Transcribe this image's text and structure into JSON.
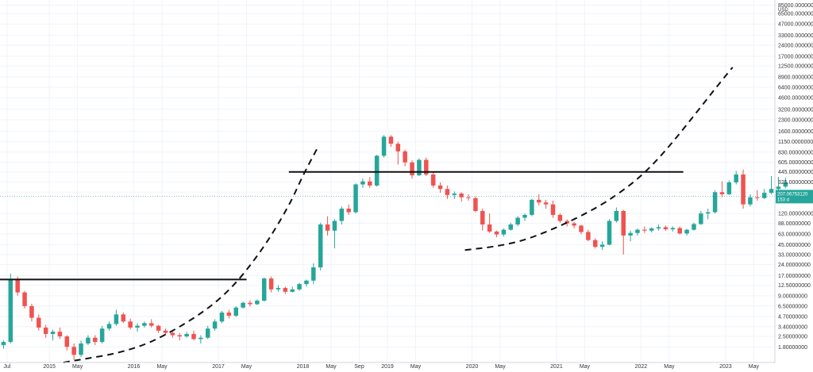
{
  "chart_data": {
    "type": "candlestick",
    "title": "",
    "y_scale": "log",
    "y_unit": "USD",
    "ylim": [
      1.1,
      100000
    ],
    "xlim": [
      "2014-06",
      "2023-08"
    ],
    "grid": true,
    "colors": {
      "up": "#26a69a",
      "down": "#ef5350",
      "last_price_bg": "#26a69a",
      "drawing": "#111111"
    },
    "y_ticks": [
      "85000.00000000",
      "65000.00000000",
      "47000.00000000",
      "33000.00000000",
      "24000.00000000",
      "17000.00000000",
      "12500.00000000",
      "8900.00000000",
      "6400.00000000",
      "4600.00000000",
      "3200.00000000",
      "2300.00000000",
      "1600.00000000",
      "1150.00000000",
      "830.00000000",
      "605.00000000",
      "445.00000000",
      "325.00000000",
      "235.00000000",
      "120.00000000",
      "88.00000000",
      "63.00000000",
      "45.00000000",
      "33.00000000",
      "24.00000000",
      "17.00000000",
      "12.50000000",
      "9.00000000",
      "6.50000000",
      "4.70000000",
      "3.40000000",
      "2.50000000",
      "1.80000000"
    ],
    "x_ticks": [
      "Jul",
      "2015",
      "May",
      "2016",
      "May",
      "2017",
      "May",
      "2018",
      "May",
      "Sep",
      "2019",
      "May",
      "2020",
      "May",
      "2021",
      "May",
      "2022",
      "May",
      "2023",
      "May"
    ],
    "last_price": {
      "value": "207.06753120",
      "countdown": "153 d"
    },
    "candles": [
      [
        1.9,
        2.2,
        1.7,
        2.1
      ],
      [
        2.1,
        18.0,
        2.0,
        15.0
      ],
      [
        15.0,
        16.5,
        9.0,
        10.0
      ],
      [
        10.0,
        10.5,
        6.0,
        6.5
      ],
      [
        6.5,
        7.0,
        4.0,
        4.5
      ],
      [
        4.5,
        5.0,
        3.0,
        3.3
      ],
      [
        3.3,
        3.6,
        2.4,
        2.7
      ],
      [
        2.7,
        3.1,
        2.2,
        2.9
      ],
      [
        2.9,
        3.3,
        2.3,
        2.5
      ],
      [
        2.5,
        2.6,
        1.6,
        1.8
      ],
      [
        1.8,
        2.0,
        1.2,
        1.4
      ],
      [
        1.4,
        2.2,
        1.3,
        2.0
      ],
      [
        2.0,
        2.6,
        1.9,
        2.4
      ],
      [
        2.4,
        2.6,
        1.9,
        2.1
      ],
      [
        2.1,
        3.5,
        2.0,
        3.2
      ],
      [
        3.2,
        4.0,
        3.0,
        3.7
      ],
      [
        3.7,
        5.8,
        3.5,
        5.0
      ],
      [
        5.0,
        5.3,
        3.8,
        4.0
      ],
      [
        4.0,
        4.4,
        3.1,
        3.3
      ],
      [
        3.3,
        3.8,
        2.9,
        3.5
      ],
      [
        3.5,
        4.0,
        3.3,
        3.8
      ],
      [
        3.8,
        4.3,
        3.3,
        3.5
      ],
      [
        3.5,
        3.6,
        2.8,
        3.0
      ],
      [
        3.0,
        3.2,
        2.6,
        2.8
      ],
      [
        2.8,
        3.1,
        2.4,
        2.6
      ],
      [
        2.6,
        2.8,
        2.2,
        2.5
      ],
      [
        2.5,
        2.9,
        2.4,
        2.7
      ],
      [
        2.7,
        3.0,
        2.2,
        2.3
      ],
      [
        2.3,
        2.6,
        2.0,
        2.4
      ],
      [
        2.4,
        3.5,
        2.3,
        3.2
      ],
      [
        3.2,
        4.3,
        3.0,
        4.0
      ],
      [
        4.0,
        5.6,
        3.8,
        5.3
      ],
      [
        5.3,
        5.8,
        4.4,
        4.8
      ],
      [
        4.8,
        6.5,
        4.6,
        6.2
      ],
      [
        6.2,
        7.5,
        6.0,
        7.2
      ],
      [
        7.2,
        7.8,
        6.4,
        6.9
      ],
      [
        6.9,
        8.0,
        6.7,
        7.7
      ],
      [
        7.7,
        16.0,
        7.5,
        15.5
      ],
      [
        15.5,
        16.5,
        10.0,
        11.0
      ],
      [
        11.0,
        12.5,
        10.2,
        11.5
      ],
      [
        11.5,
        12.0,
        9.5,
        10.2
      ],
      [
        10.2,
        12.0,
        10.0,
        11.0
      ],
      [
        11.0,
        13.5,
        10.5,
        13.0
      ],
      [
        13.0,
        15.0,
        12.0,
        14.5
      ],
      [
        14.5,
        25.0,
        13.0,
        22.0
      ],
      [
        22.0,
        90.0,
        20.0,
        85.0
      ],
      [
        85.0,
        110.0,
        60.0,
        70.0
      ],
      [
        70.0,
        100.0,
        40.0,
        95.0
      ],
      [
        95.0,
        150.0,
        85.0,
        140.0
      ],
      [
        140.0,
        160.0,
        115.0,
        125.0
      ],
      [
        125.0,
        310.0,
        120.0,
        300.0
      ],
      [
        300.0,
        360.0,
        270.0,
        330.0
      ],
      [
        330.0,
        380.0,
        270.0,
        290.0
      ],
      [
        290.0,
        760.0,
        280.0,
        740.0
      ],
      [
        740.0,
        1420.0,
        700.0,
        1350.0
      ],
      [
        1350.0,
        1420.0,
        980.0,
        1080.0
      ],
      [
        1080.0,
        1150.0,
        560.0,
        850.0
      ],
      [
        850.0,
        900.0,
        530.0,
        600.0
      ],
      [
        600.0,
        640.0,
        360.0,
        400.0
      ],
      [
        400.0,
        680.0,
        390.0,
        650.0
      ],
      [
        650.0,
        700.0,
        390.0,
        410.0
      ],
      [
        410.0,
        450.0,
        270.0,
        290.0
      ],
      [
        290.0,
        320.0,
        230.0,
        260.0
      ],
      [
        260.0,
        290.0,
        190.0,
        215.0
      ],
      [
        215.0,
        240.0,
        190.0,
        225.0
      ],
      [
        225.0,
        235.0,
        175.0,
        200.0
      ],
      [
        200.0,
        220.0,
        180.0,
        195.0
      ],
      [
        195.0,
        205.0,
        125.0,
        130.0
      ],
      [
        130.0,
        140.0,
        70.0,
        85.0
      ],
      [
        85.0,
        120.0,
        65.0,
        68.0
      ],
      [
        68.0,
        70.0,
        57.0,
        62.0
      ],
      [
        62.0,
        75.0,
        58.0,
        72.0
      ],
      [
        72.0,
        90.0,
        70.0,
        85.0
      ],
      [
        85.0,
        110.0,
        80.0,
        105.0
      ],
      [
        105.0,
        120.0,
        95.0,
        115.0
      ],
      [
        115.0,
        190.0,
        110.0,
        185.0
      ],
      [
        185.0,
        220.0,
        155.0,
        170.0
      ],
      [
        170.0,
        185.0,
        140.0,
        160.0
      ],
      [
        160.0,
        180.0,
        105.0,
        115.0
      ],
      [
        115.0,
        120.0,
        90.0,
        95.0
      ],
      [
        95.0,
        100.0,
        80.0,
        88.0
      ],
      [
        88.0,
        92.0,
        75.0,
        82.0
      ],
      [
        82.0,
        84.0,
        62.0,
        67.0
      ],
      [
        67.0,
        72.0,
        50.0,
        52.0
      ],
      [
        52.0,
        55.0,
        40.0,
        42.0
      ],
      [
        42.0,
        50.0,
        38.0,
        45.0
      ],
      [
        45.0,
        100.0,
        44.0,
        95.0
      ],
      [
        95.0,
        145.0,
        90.0,
        130.0
      ],
      [
        130.0,
        135.0,
        33.0,
        60.0
      ],
      [
        60.0,
        70.0,
        50.0,
        65.0
      ],
      [
        65.0,
        75.0,
        60.0,
        72.0
      ],
      [
        72.0,
        80.0,
        65.0,
        70.0
      ],
      [
        70.0,
        78.0,
        66.0,
        75.0
      ],
      [
        75.0,
        85.0,
        70.0,
        78.0
      ],
      [
        78.0,
        82.0,
        70.0,
        73.0
      ],
      [
        73.0,
        80.0,
        68.0,
        76.0
      ],
      [
        76.0,
        80.0,
        62.0,
        64.0
      ],
      [
        64.0,
        74.0,
        60.0,
        72.0
      ],
      [
        72.0,
        90.0,
        70.0,
        86.0
      ],
      [
        86.0,
        130.0,
        84.0,
        120.0
      ],
      [
        120.0,
        140.0,
        100.0,
        125.0
      ],
      [
        125.0,
        250.0,
        120.0,
        235.0
      ],
      [
        235.0,
        330.0,
        200.0,
        220.0
      ],
      [
        220.0,
        340.0,
        215.0,
        320.0
      ],
      [
        320.0,
        460.0,
        300.0,
        410.0
      ],
      [
        410.0,
        480.0,
        140.0,
        160.0
      ],
      [
        160.0,
        220.0,
        150.0,
        200.0
      ],
      [
        200.0,
        250.0,
        180.0,
        195.0
      ],
      [
        195.0,
        260.0,
        190.0,
        230.0
      ],
      [
        230.0,
        390.0,
        220.0,
        260.0
      ],
      [
        260.0,
        380.0,
        250.0,
        280.0
      ],
      [
        280.0,
        370.0,
        265.0,
        320.0
      ]
    ],
    "drawings": [
      {
        "type": "horizontal_line",
        "price": 15.0,
        "from": "2014-06",
        "to": "2017-05"
      },
      {
        "type": "horizontal_line",
        "price": 445.0,
        "from": "2017-11",
        "to": "2022-07"
      },
      {
        "type": "dashed_curve",
        "points": [
          [
            "2015-03",
            1.1
          ],
          [
            "2016-01",
            1.6
          ],
          [
            "2016-08",
            3.5
          ],
          [
            "2017-02",
            9
          ],
          [
            "2017-07",
            35
          ],
          [
            "2017-11",
            150
          ],
          [
            "2018-01",
            400
          ],
          [
            "2018-03",
            920
          ]
        ]
      },
      {
        "type": "dashed_curve",
        "points": [
          [
            "2019-12",
            38
          ],
          [
            "2020-04",
            42
          ],
          [
            "2020-08",
            50
          ],
          [
            "2020-12",
            70
          ],
          [
            "2021-04",
            105
          ],
          [
            "2021-08",
            170
          ],
          [
            "2021-12",
            320
          ],
          [
            "2022-03",
            600
          ],
          [
            "2022-06",
            1300
          ],
          [
            "2022-09",
            3000
          ],
          [
            "2022-12",
            7000
          ],
          [
            "2023-02",
            12000
          ]
        ]
      }
    ]
  }
}
